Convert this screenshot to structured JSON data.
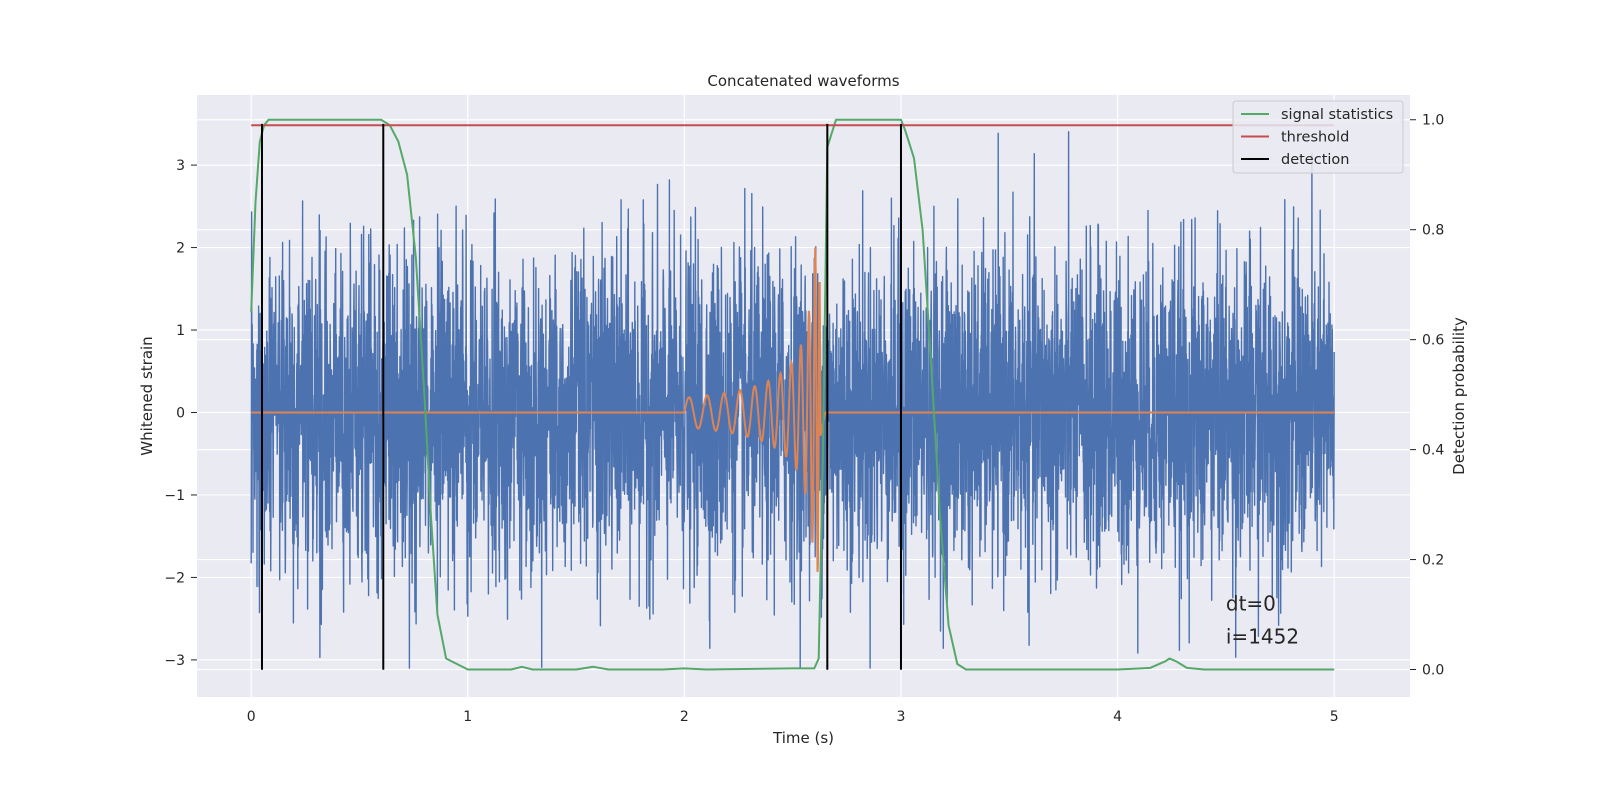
{
  "chart_data": {
    "type": "line",
    "title": "Concatenated waveforms",
    "xlabel": "Time (s)",
    "ylabel_left": "Whitened strain",
    "ylabel_right": "Detection probability",
    "xlim": [
      -0.25,
      5.35
    ],
    "ylim_left": [
      -3.45,
      3.85
    ],
    "ylim_right": [
      -0.05,
      1.045
    ],
    "xticks": [
      0,
      1,
      2,
      3,
      4,
      5
    ],
    "xtick_labels": [
      "0",
      "1",
      "2",
      "3",
      "4",
      "5"
    ],
    "yticks_left": [
      -3,
      -2,
      -1,
      0,
      1,
      2,
      3
    ],
    "ytick_labels_left": [
      "−3",
      "−2",
      "−1",
      "0",
      "1",
      "2",
      "3"
    ],
    "yticks_right": [
      0.0,
      0.2,
      0.4,
      0.6,
      0.8,
      1.0
    ],
    "ytick_labels_right": [
      "0.0",
      "0.2",
      "0.4",
      "0.6",
      "0.8",
      "1.0"
    ],
    "grid": true,
    "legend_position": "top-right",
    "series": [
      {
        "name": "",
        "kind": "noise",
        "axis": "left",
        "color": "#4c72b0",
        "x_range": [
          0,
          5
        ],
        "y_range_approx": [
          -3.1,
          3.5
        ]
      },
      {
        "name": "",
        "kind": "chirp",
        "axis": "left",
        "color": "#dd8452",
        "flat_start": 0,
        "chirp_start": 2.0,
        "chirp_end": 2.62,
        "end": 5.0,
        "start_amplitude": 0.18,
        "peak_amplitude": 2.0
      },
      {
        "name": "signal statistics",
        "axis": "right",
        "color": "#55a868",
        "x": [
          0,
          0.02,
          0.04,
          0.06,
          0.08,
          0.1,
          0.12,
          0.3,
          0.5,
          0.6,
          0.64,
          0.68,
          0.72,
          0.76,
          0.8,
          0.83,
          0.86,
          0.9,
          1.0,
          1.2,
          1.25,
          1.3,
          1.5,
          1.58,
          1.65,
          1.9,
          2.0,
          2.1,
          2.5,
          2.6,
          2.62,
          2.64,
          2.66,
          2.7,
          2.8,
          2.95,
          3.0,
          3.02,
          3.06,
          3.1,
          3.14,
          3.18,
          3.22,
          3.26,
          3.3,
          3.5,
          4.0,
          4.15,
          4.22,
          4.24,
          4.27,
          4.32,
          4.4,
          5.0
        ],
        "y": [
          0.65,
          0.85,
          0.96,
          0.99,
          1.0,
          1.0,
          1.0,
          1.0,
          1.0,
          1.0,
          0.99,
          0.96,
          0.9,
          0.75,
          0.5,
          0.28,
          0.1,
          0.02,
          0.0,
          0.0,
          0.005,
          0.0,
          0.0,
          0.005,
          0.0,
          0.0,
          0.002,
          0.0,
          0.002,
          0.002,
          0.02,
          0.4,
          0.95,
          1.0,
          1.0,
          1.0,
          1.0,
          0.98,
          0.93,
          0.8,
          0.55,
          0.28,
          0.08,
          0.01,
          0.0,
          0.0,
          0.0,
          0.003,
          0.015,
          0.02,
          0.015,
          0.003,
          0.0,
          0.0
        ]
      },
      {
        "name": "threshold",
        "axis": "right",
        "color": "#c44e52",
        "x": [
          0,
          5
        ],
        "y": [
          0.99,
          0.99
        ]
      },
      {
        "name": "detection",
        "axis": "left",
        "color": "#000000",
        "lines": [
          {
            "x": 0.05,
            "y": [
              -3.12,
              3.5
            ]
          },
          {
            "x": 0.61,
            "y": [
              -3.12,
              3.5
            ]
          },
          {
            "x": 2.66,
            "y": [
              -3.12,
              3.5
            ]
          },
          {
            "x": 3.0,
            "y": [
              -3.12,
              3.5
            ]
          }
        ]
      }
    ],
    "annotations": [
      {
        "text": "dt=0",
        "x": 4.5,
        "y": -2.4
      },
      {
        "text": "i=1452",
        "x": 4.5,
        "y": -2.8
      }
    ]
  }
}
